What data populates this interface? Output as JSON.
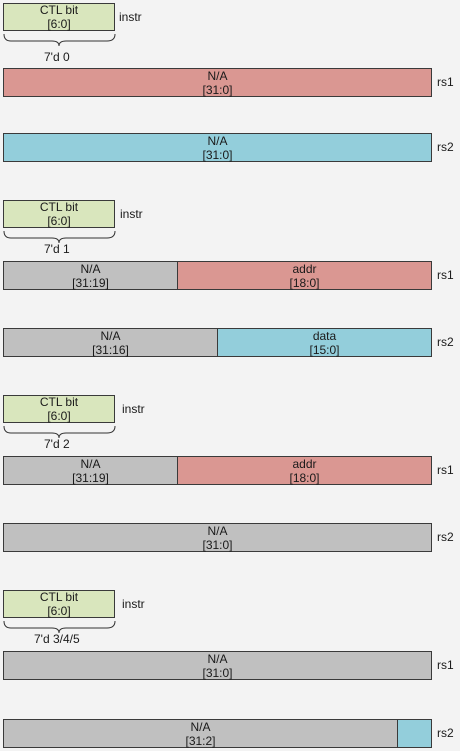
{
  "groups": [
    {
      "ctl": {
        "name": "CTL bit",
        "range": "[6:0]"
      },
      "instr_label": "instr",
      "value": "7'd 0",
      "rs1": {
        "label": "rs1",
        "fields": [
          {
            "name": "N/A",
            "range": "[31:0]",
            "color": "#da9792"
          }
        ]
      },
      "rs2": {
        "label": "rs2",
        "fields": [
          {
            "name": "N/A",
            "range": "[31:0]",
            "color": "#93cedb"
          }
        ]
      }
    },
    {
      "ctl": {
        "name": "CTL bit",
        "range": "[6:0]"
      },
      "instr_label": "instr",
      "value": "7'd 1",
      "rs1": {
        "label": "rs1",
        "fields": [
          {
            "name": "N/A",
            "range": "[31:19]",
            "color": "#c0c0c0"
          },
          {
            "name": "addr",
            "range": "[18:0]",
            "color": "#da9792"
          }
        ]
      },
      "rs2": {
        "label": "rs2",
        "fields": [
          {
            "name": "N/A",
            "range": "[31:16]",
            "color": "#c0c0c0"
          },
          {
            "name": "data",
            "range": "[15:0]",
            "color": "#93cedb"
          }
        ]
      }
    },
    {
      "ctl": {
        "name": "CTL bit",
        "range": "[6:0]"
      },
      "instr_label": "instr",
      "value": "7'd 2",
      "rs1": {
        "label": "rs1",
        "fields": [
          {
            "name": "N/A",
            "range": "[31:19]",
            "color": "#c0c0c0"
          },
          {
            "name": "addr",
            "range": "[18:0]",
            "color": "#da9792"
          }
        ]
      },
      "rs2": {
        "label": "rs2",
        "fields": [
          {
            "name": "N/A",
            "range": "[31:0]",
            "color": "#c0c0c0"
          }
        ]
      }
    },
    {
      "ctl": {
        "name": "CTL bit",
        "range": "[6:0]"
      },
      "instr_label": "instr",
      "value": "7'd 3/4/5",
      "rs1": {
        "label": "rs1",
        "fields": [
          {
            "name": "N/A",
            "range": "[31:0]",
            "color": "#c0c0c0"
          }
        ]
      },
      "rs2": {
        "label": "rs2",
        "fields": [
          {
            "name": "N/A",
            "range": "[31:2]",
            "color": "#c0c0c0"
          },
          {
            "name": "",
            "range": "",
            "color": "#93cedb"
          }
        ]
      }
    }
  ]
}
